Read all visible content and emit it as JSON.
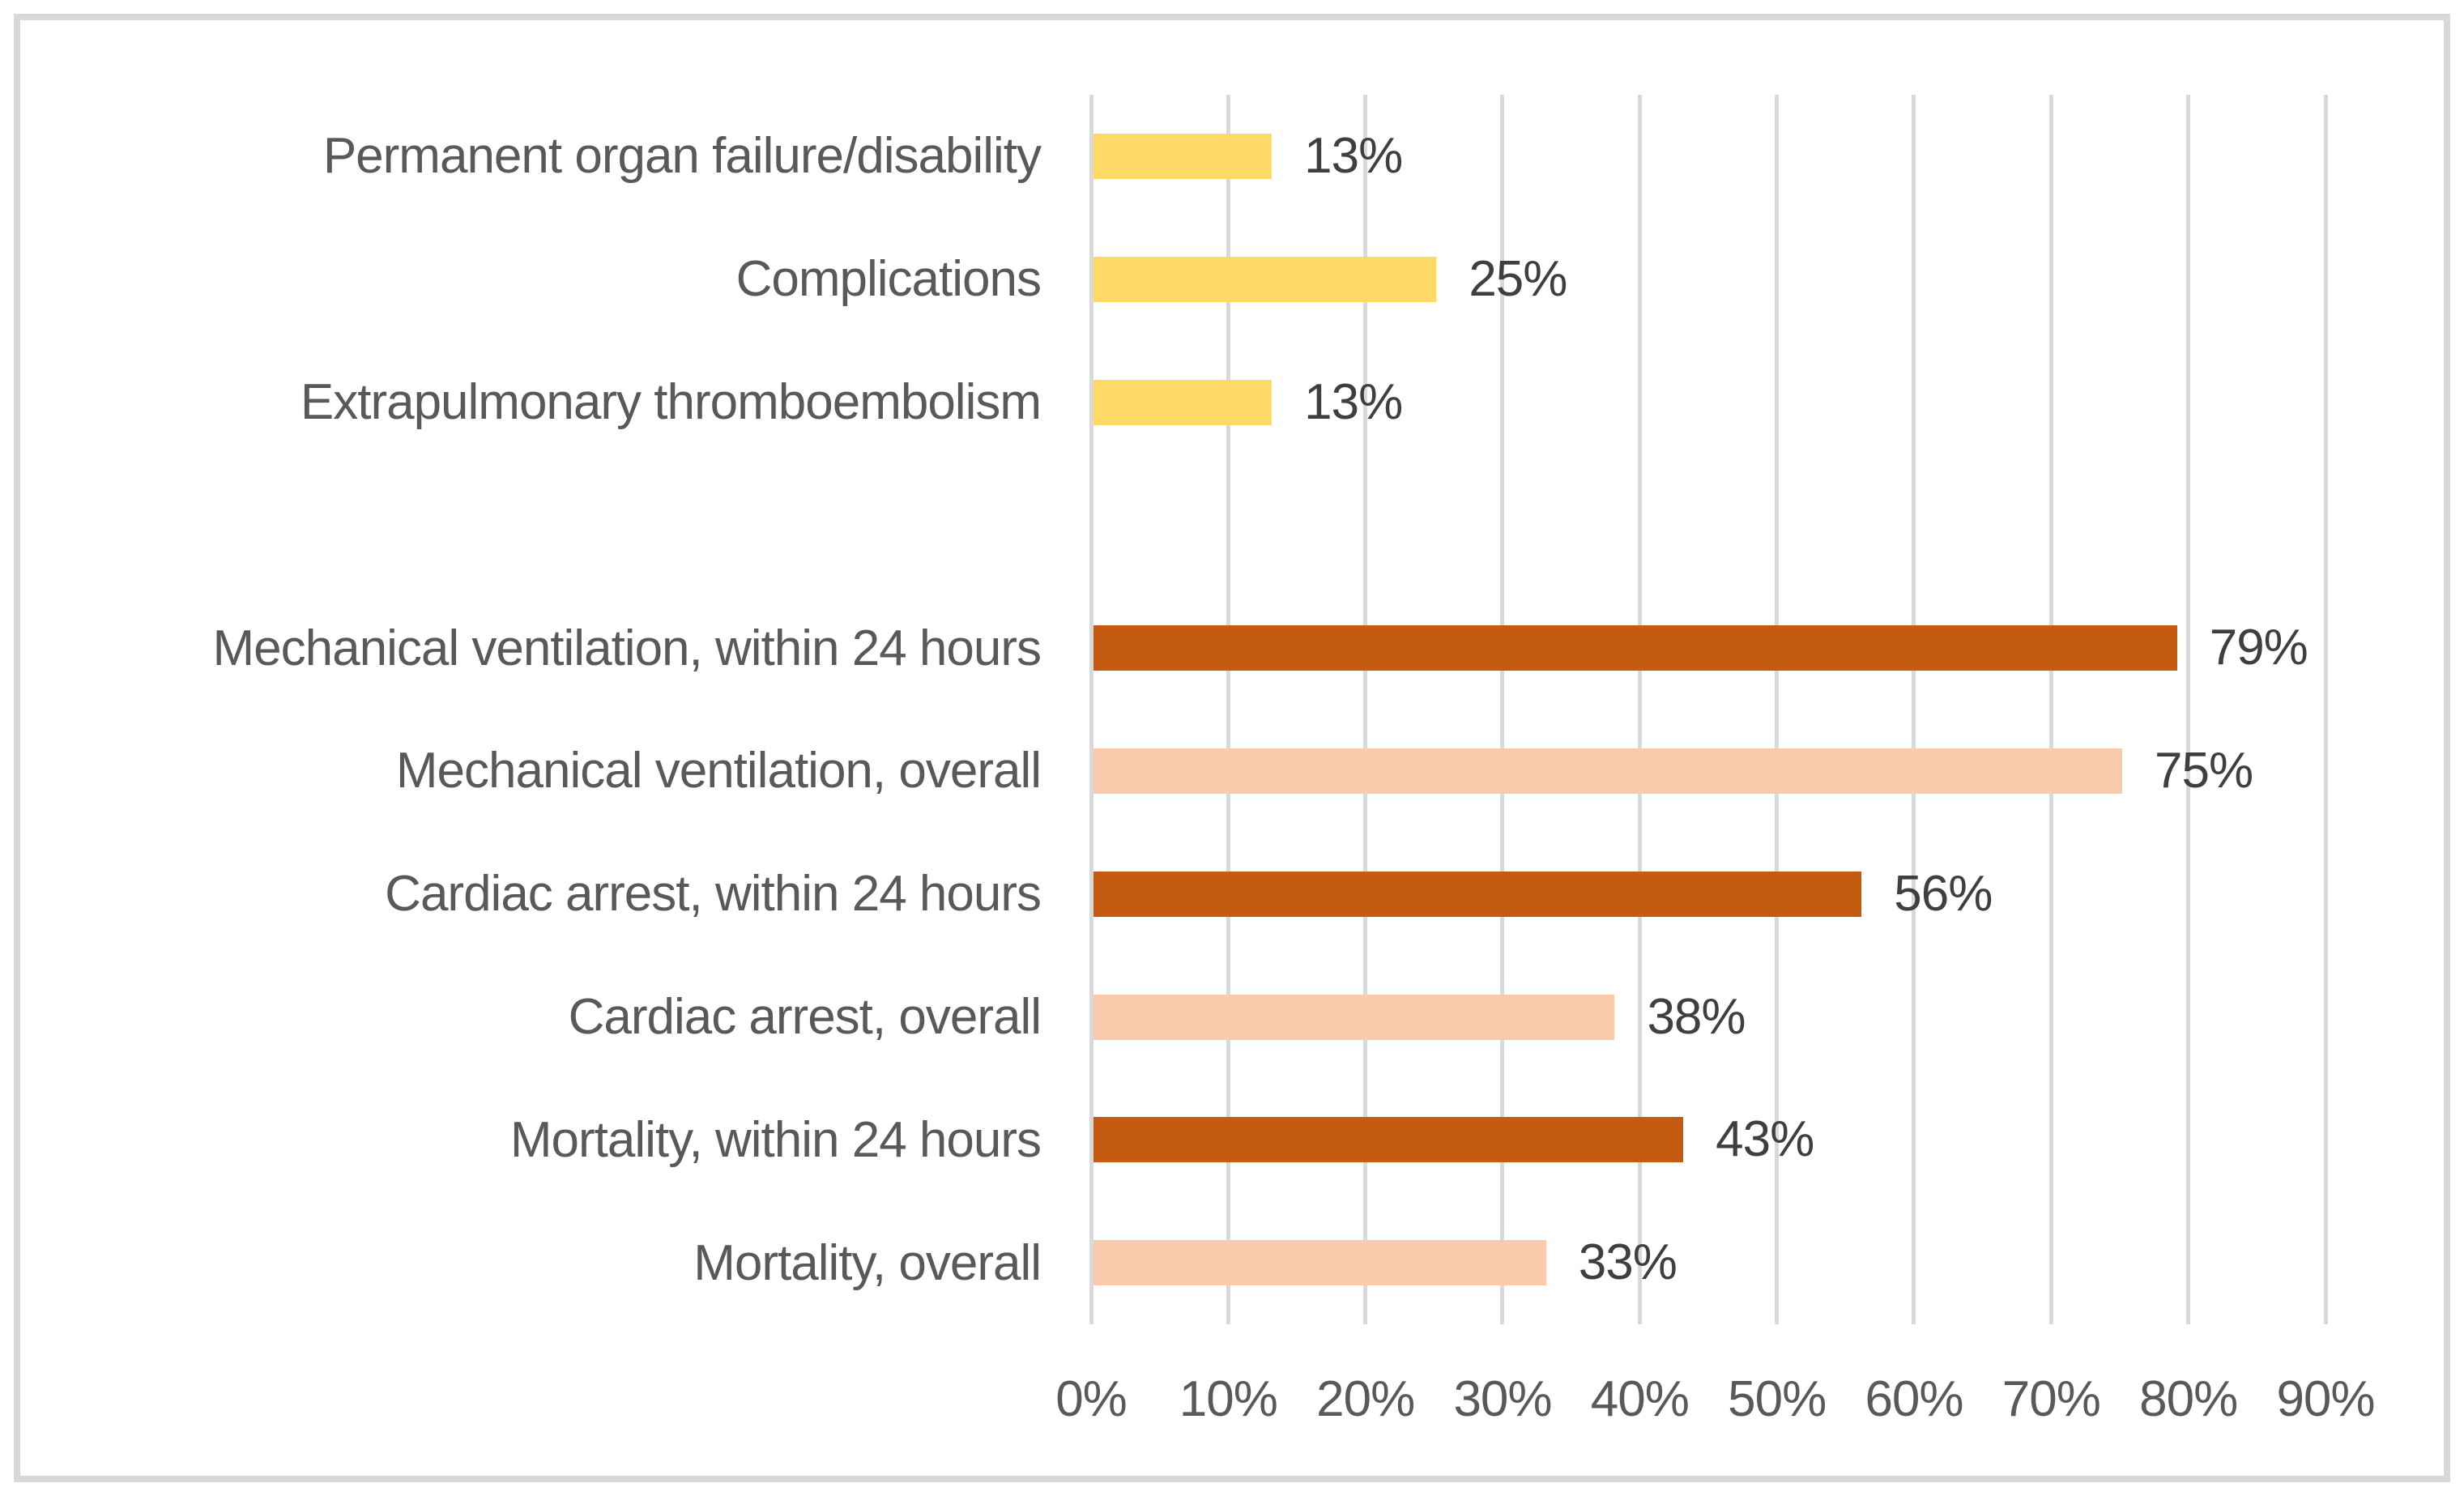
{
  "chart_data": {
    "type": "bar",
    "orientation": "horizontal",
    "title": "",
    "xlabel": "",
    "ylabel": "",
    "x_axis": {
      "min": 0,
      "max": 90,
      "tick_step": 10,
      "tick_labels": [
        "0%",
        "10%",
        "20%",
        "30%",
        "40%",
        "50%",
        "60%",
        "70%",
        "80%",
        "90%"
      ]
    },
    "grid": true,
    "legend": false,
    "rows": [
      {
        "category": "Permanent organ failure/disability",
        "value": 13,
        "label": "13%",
        "color": "#FFD966"
      },
      {
        "category": "Complications",
        "value": 25,
        "label": "25%",
        "color": "#FFD966"
      },
      {
        "category": "Extrapulmonary thromboembolism",
        "value": 13,
        "label": "13%",
        "color": "#FFD966"
      },
      {
        "category": "",
        "value": null,
        "label": "",
        "color": null
      },
      {
        "category": "Mechanical ventilation, within 24 hours",
        "value": 79,
        "label": "79%",
        "color": "#C55A11"
      },
      {
        "category": "Mechanical ventilation, overall",
        "value": 75,
        "label": "75%",
        "color": "#F8CBAD"
      },
      {
        "category": "Cardiac arrest, within 24 hours",
        "value": 56,
        "label": "56%",
        "color": "#C55A11"
      },
      {
        "category": "Cardiac arrest, overall",
        "value": 38,
        "label": "38%",
        "color": "#F8CBAD"
      },
      {
        "category": "Mortality, within 24 hours",
        "value": 43,
        "label": "43%",
        "color": "#C55A11"
      },
      {
        "category": "Mortality, overall",
        "value": 33,
        "label": "33%",
        "color": "#F8CBAD"
      }
    ]
  },
  "styles": {
    "bar_yellow": "#FFD966",
    "bar_dark_orange": "#C55A11",
    "bar_light_peach": "#F8CBAD",
    "gridline_color": "#D9D9D9",
    "border_color": "#D9D9D9",
    "category_text_color": "#595959",
    "axis_text_color": "#595959",
    "value_text_color": "#3F3F3F",
    "background_color": "#FFFFFF"
  }
}
